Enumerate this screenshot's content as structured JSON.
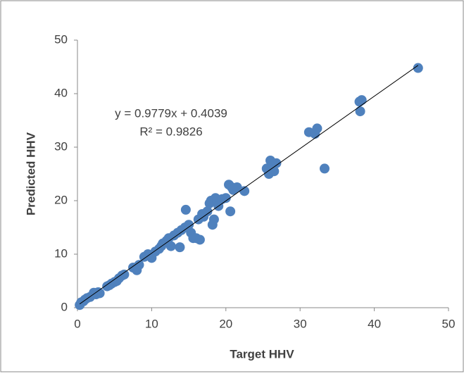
{
  "chart_data": {
    "type": "scatter",
    "xlabel": "Target HHV",
    "ylabel": "Predicted HHV",
    "annotations": [
      "y = 0.9779x + 0.4039",
      "R² = 0.9826"
    ],
    "trendline": {
      "slope": 0.9779,
      "intercept": 0.4039,
      "color": "#000000"
    },
    "color": "#4f81bd",
    "x": [
      0.3,
      0.5,
      0.8,
      1,
      1.3,
      1.7,
      2.2,
      2.5,
      2.8,
      3,
      4,
      4.3,
      4.6,
      5,
      5.3,
      5.6,
      6,
      6.3,
      7.5,
      8,
      8.3,
      9,
      9.5,
      10,
      10.5,
      11,
      11.3,
      11.5,
      12,
      12.3,
      12.6,
      13,
      13.5,
      13.8,
      14,
      14.5,
      14.6,
      15,
      15.3,
      15.6,
      16,
      16.3,
      16.5,
      16.8,
      17,
      17.5,
      17.8,
      18,
      18.2,
      18.4,
      18.6,
      18.8,
      19,
      19.5,
      20,
      20.4,
      20.6,
      20.8,
      21,
      21.5,
      22.5,
      25.5,
      25.8,
      26,
      26.2,
      26.5,
      26.8,
      31.2,
      32,
      32.3,
      33.3,
      38,
      38.1,
      38.3,
      45.9
    ],
    "values": [
      0.5,
      1,
      1.2,
      1.5,
      1.8,
      2,
      2.8,
      2.5,
      2.9,
      2.7,
      4,
      4.2,
      4.5,
      4.8,
      5,
      5.5,
      6,
      6.2,
      7.5,
      7,
      8,
      9.5,
      10,
      9.3,
      10.5,
      11,
      11.5,
      12,
      12.5,
      13,
      11.5,
      13.5,
      14,
      11.3,
      14.5,
      15,
      18.3,
      15.5,
      14,
      13,
      13,
      16.5,
      12.7,
      17.5,
      17,
      18,
      19.5,
      20,
      15.5,
      16.5,
      20.5,
      20,
      19,
      20.3,
      20.5,
      23,
      18,
      22.5,
      22,
      22.5,
      21.8,
      26,
      25,
      27.5,
      26.5,
      25.5,
      27,
      32.8,
      32.5,
      33.5,
      26,
      38.5,
      36.7,
      38.8,
      44.8
    ],
    "xlim": [
      0,
      50
    ],
    "ylim": [
      0,
      50
    ],
    "xticks": [
      0,
      10,
      20,
      30,
      40,
      50
    ],
    "yticks": [
      0,
      10,
      20,
      30,
      40,
      50
    ]
  }
}
